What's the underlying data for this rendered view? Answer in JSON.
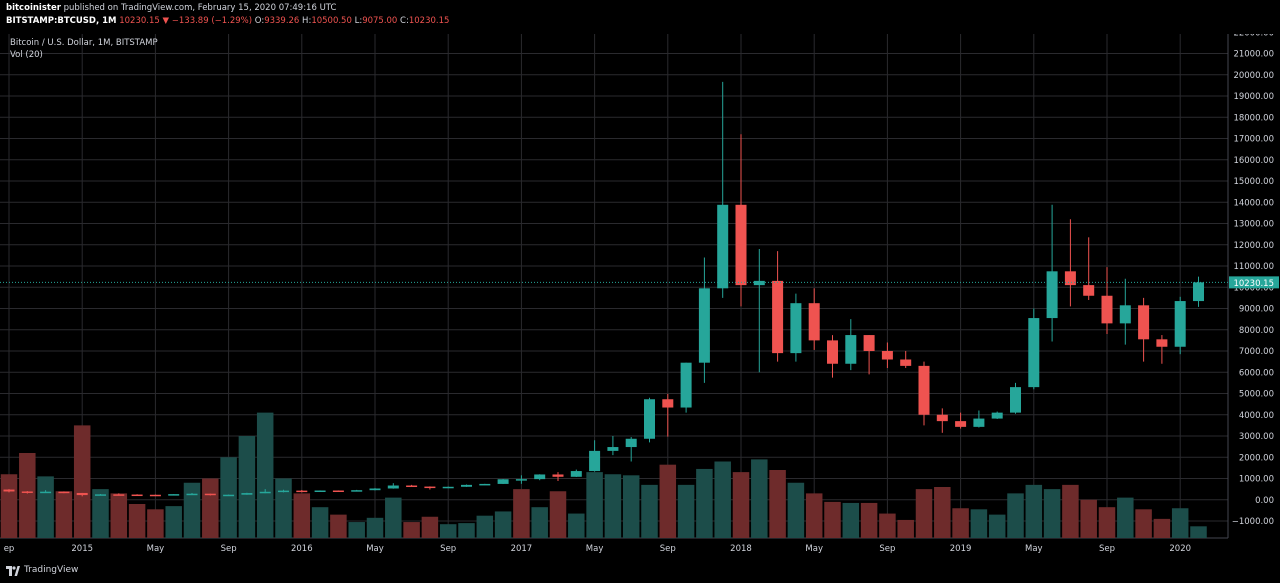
{
  "header": {
    "publisher": "bitcoinister",
    "published_text": "published on TradingView.com, February 15, 2020 07:49:16 UTC",
    "symbol": "BITSTAMP:BTCUSD, 1M",
    "last": "10230.15",
    "arrow": "▼",
    "change": "−133.89 (−1.29%)",
    "o_label": "O:",
    "o_value": "9339.26",
    "h_label": "H:",
    "h_value": "10500.50",
    "l_label": "L:",
    "l_value": "9075.00",
    "c_label": "C:",
    "c_value": "10230.15"
  },
  "legend": {
    "title": "Bitcoin / U.S. Dollar, 1M, BITSTAMP",
    "volume": "Vol (20)"
  },
  "footer": {
    "brand": "TradingView"
  },
  "colors": {
    "up": "#26a69a",
    "down": "#ef5350",
    "vol_up": "#1c4d4a",
    "vol_down": "#6e2b2b",
    "grid": "#2a2a2e",
    "text": "#d1d4dc",
    "price_badge": "#26a69a"
  },
  "chart_data": {
    "type": "candlestick",
    "interval": "1M",
    "ylim": [
      -1800,
      22200
    ],
    "y_ticks": [
      -1000,
      0,
      1000,
      2000,
      3000,
      4000,
      5000,
      6000,
      7000,
      8000,
      9000,
      10000,
      11000,
      12000,
      13000,
      14000,
      15000,
      16000,
      17000,
      18000,
      19000,
      20000,
      21000,
      22000
    ],
    "y_tick_labels": [
      "−1000.00",
      "0.00",
      "1000.00",
      "2000.00",
      "3000.00",
      "4000.00",
      "5000.00",
      "6000.00",
      "7000.00",
      "8000.00",
      "9000.00",
      "10000.00",
      "11000.00",
      "12000.00",
      "13000.00",
      "14000.00",
      "15000.00",
      "16000.00",
      "17000.00",
      "18000.00",
      "19000.00",
      "20000.00",
      "21000.00",
      "22000.00"
    ],
    "x_labels": [
      {
        "month": "2014-09",
        "label": "ep"
      },
      {
        "month": "2015-01",
        "label": "2015"
      },
      {
        "month": "2015-05",
        "label": "May"
      },
      {
        "month": "2015-09",
        "label": "Sep"
      },
      {
        "month": "2016-01",
        "label": "2016"
      },
      {
        "month": "2016-05",
        "label": "May"
      },
      {
        "month": "2016-09",
        "label": "Sep"
      },
      {
        "month": "2017-01",
        "label": "2017"
      },
      {
        "month": "2017-05",
        "label": "May"
      },
      {
        "month": "2017-09",
        "label": "Sep"
      },
      {
        "month": "2018-01",
        "label": "2018"
      },
      {
        "month": "2018-05",
        "label": "May"
      },
      {
        "month": "2018-09",
        "label": "Sep"
      },
      {
        "month": "2019-01",
        "label": "2019"
      },
      {
        "month": "2019-05",
        "label": "May"
      },
      {
        "month": "2019-09",
        "label": "Sep"
      },
      {
        "month": "2020-01",
        "label": "2020"
      }
    ],
    "last_price": 10230.15,
    "last_price_label": "10230.15",
    "candles": [
      {
        "t": "2014-09",
        "o": 480,
        "h": 500,
        "l": 350,
        "c": 390
      },
      {
        "t": "2014-10",
        "o": 390,
        "h": 410,
        "l": 290,
        "c": 340
      },
      {
        "t": "2014-11",
        "o": 340,
        "h": 450,
        "l": 320,
        "c": 380
      },
      {
        "t": "2014-12",
        "o": 380,
        "h": 390,
        "l": 310,
        "c": 320
      },
      {
        "t": "2015-01",
        "o": 320,
        "h": 320,
        "l": 160,
        "c": 220
      },
      {
        "t": "2015-02",
        "o": 220,
        "h": 270,
        "l": 210,
        "c": 255
      },
      {
        "t": "2015-03",
        "o": 255,
        "h": 300,
        "l": 240,
        "c": 245
      },
      {
        "t": "2015-04",
        "o": 245,
        "h": 260,
        "l": 210,
        "c": 235
      },
      {
        "t": "2015-05",
        "o": 235,
        "h": 245,
        "l": 225,
        "c": 230
      },
      {
        "t": "2015-06",
        "o": 230,
        "h": 265,
        "l": 220,
        "c": 265
      },
      {
        "t": "2015-07",
        "o": 265,
        "h": 320,
        "l": 255,
        "c": 285
      },
      {
        "t": "2015-08",
        "o": 285,
        "h": 285,
        "l": 200,
        "c": 230
      },
      {
        "t": "2015-09",
        "o": 230,
        "h": 245,
        "l": 225,
        "c": 237
      },
      {
        "t": "2015-10",
        "o": 237,
        "h": 330,
        "l": 235,
        "c": 315
      },
      {
        "t": "2015-11",
        "o": 315,
        "h": 500,
        "l": 310,
        "c": 375
      },
      {
        "t": "2015-12",
        "o": 375,
        "h": 470,
        "l": 350,
        "c": 430
      },
      {
        "t": "2016-01",
        "o": 430,
        "h": 460,
        "l": 350,
        "c": 370
      },
      {
        "t": "2016-02",
        "o": 370,
        "h": 440,
        "l": 365,
        "c": 435
      },
      {
        "t": "2016-03",
        "o": 435,
        "h": 440,
        "l": 390,
        "c": 415
      },
      {
        "t": "2016-04",
        "o": 415,
        "h": 465,
        "l": 410,
        "c": 450
      },
      {
        "t": "2016-05",
        "o": 450,
        "h": 550,
        "l": 440,
        "c": 530
      },
      {
        "t": "2016-06",
        "o": 530,
        "h": 780,
        "l": 520,
        "c": 670
      },
      {
        "t": "2016-07",
        "o": 670,
        "h": 700,
        "l": 600,
        "c": 620
      },
      {
        "t": "2016-08",
        "o": 620,
        "h": 630,
        "l": 480,
        "c": 575
      },
      {
        "t": "2016-09",
        "o": 575,
        "h": 620,
        "l": 570,
        "c": 610
      },
      {
        "t": "2016-10",
        "o": 610,
        "h": 720,
        "l": 605,
        "c": 700
      },
      {
        "t": "2016-11",
        "o": 700,
        "h": 750,
        "l": 690,
        "c": 745
      },
      {
        "t": "2016-12",
        "o": 745,
        "h": 975,
        "l": 740,
        "c": 965
      },
      {
        "t": "2017-01",
        "o": 965,
        "h": 1150,
        "l": 750,
        "c": 970
      },
      {
        "t": "2017-02",
        "o": 970,
        "h": 1200,
        "l": 920,
        "c": 1190
      },
      {
        "t": "2017-03",
        "o": 1190,
        "h": 1300,
        "l": 880,
        "c": 1080
      },
      {
        "t": "2017-04",
        "o": 1080,
        "h": 1420,
        "l": 1070,
        "c": 1350
      },
      {
        "t": "2017-05",
        "o": 1350,
        "h": 2800,
        "l": 1330,
        "c": 2300
      },
      {
        "t": "2017-06",
        "o": 2300,
        "h": 3000,
        "l": 2100,
        "c": 2480
      },
      {
        "t": "2017-07",
        "o": 2480,
        "h": 2950,
        "l": 1800,
        "c": 2870
      },
      {
        "t": "2017-08",
        "o": 2870,
        "h": 4800,
        "l": 2700,
        "c": 4730
      },
      {
        "t": "2017-09",
        "o": 4730,
        "h": 4980,
        "l": 2970,
        "c": 4340
      },
      {
        "t": "2017-10",
        "o": 4340,
        "h": 6450,
        "l": 4100,
        "c": 6450
      },
      {
        "t": "2017-11",
        "o": 6450,
        "h": 11400,
        "l": 5500,
        "c": 9950
      },
      {
        "t": "2017-12",
        "o": 9950,
        "h": 19666,
        "l": 9500,
        "c": 13880
      },
      {
        "t": "2018-01",
        "o": 13880,
        "h": 17200,
        "l": 9100,
        "c": 10100
      },
      {
        "t": "2018-02",
        "o": 10100,
        "h": 11800,
        "l": 6000,
        "c": 10300
      },
      {
        "t": "2018-03",
        "o": 10300,
        "h": 11700,
        "l": 6500,
        "c": 6900
      },
      {
        "t": "2018-04",
        "o": 6900,
        "h": 9700,
        "l": 6500,
        "c": 9250
      },
      {
        "t": "2018-05",
        "o": 9250,
        "h": 9950,
        "l": 7050,
        "c": 7500
      },
      {
        "t": "2018-06",
        "o": 7500,
        "h": 7750,
        "l": 5750,
        "c": 6400
      },
      {
        "t": "2018-07",
        "o": 6400,
        "h": 8500,
        "l": 6100,
        "c": 7750
      },
      {
        "t": "2018-08",
        "o": 7750,
        "h": 7750,
        "l": 5900,
        "c": 7000
      },
      {
        "t": "2018-09",
        "o": 7000,
        "h": 7400,
        "l": 6200,
        "c": 6600
      },
      {
        "t": "2018-10",
        "o": 6600,
        "h": 7000,
        "l": 6200,
        "c": 6300
      },
      {
        "t": "2018-11",
        "o": 6300,
        "h": 6500,
        "l": 3500,
        "c": 4000
      },
      {
        "t": "2018-12",
        "o": 4000,
        "h": 4300,
        "l": 3150,
        "c": 3700
      },
      {
        "t": "2019-01",
        "o": 3700,
        "h": 4100,
        "l": 3350,
        "c": 3430
      },
      {
        "t": "2019-02",
        "o": 3430,
        "h": 4200,
        "l": 3400,
        "c": 3820
      },
      {
        "t": "2019-03",
        "o": 3820,
        "h": 4150,
        "l": 3800,
        "c": 4100
      },
      {
        "t": "2019-04",
        "o": 4100,
        "h": 5500,
        "l": 4050,
        "c": 5300
      },
      {
        "t": "2019-05",
        "o": 5300,
        "h": 9000,
        "l": 5200,
        "c": 8550
      },
      {
        "t": "2019-06",
        "o": 8550,
        "h": 13880,
        "l": 7450,
        "c": 10750
      },
      {
        "t": "2019-07",
        "o": 10750,
        "h": 13200,
        "l": 9100,
        "c": 10100
      },
      {
        "t": "2019-08",
        "o": 10100,
        "h": 12350,
        "l": 9400,
        "c": 9600
      },
      {
        "t": "2019-09",
        "o": 9600,
        "h": 10950,
        "l": 7800,
        "c": 8300
      },
      {
        "t": "2019-10",
        "o": 8300,
        "h": 10400,
        "l": 7300,
        "c": 9150
      },
      {
        "t": "2019-11",
        "o": 9150,
        "h": 9500,
        "l": 6500,
        "c": 7550
      },
      {
        "t": "2019-12",
        "o": 7550,
        "h": 7750,
        "l": 6400,
        "c": 7200
      },
      {
        "t": "2020-01",
        "o": 7200,
        "h": 9550,
        "l": 6850,
        "c": 9350
      },
      {
        "t": "2020-02",
        "o": 9350,
        "h": 10500,
        "l": 9075,
        "c": 10230
      }
    ],
    "volume_overlay": [
      {
        "t": "2014-09",
        "v": 1200,
        "dir": "down"
      },
      {
        "t": "2014-10",
        "v": 2200,
        "dir": "down"
      },
      {
        "t": "2014-11",
        "v": 1100,
        "dir": "up"
      },
      {
        "t": "2014-12",
        "v": 400,
        "dir": "down"
      },
      {
        "t": "2015-01",
        "v": 3500,
        "dir": "down"
      },
      {
        "t": "2015-02",
        "v": 500,
        "dir": "up"
      },
      {
        "t": "2015-03",
        "v": 300,
        "dir": "down"
      },
      {
        "t": "2015-04",
        "v": -200,
        "dir": "down"
      },
      {
        "t": "2015-05",
        "v": -450,
        "dir": "down"
      },
      {
        "t": "2015-06",
        "v": -300,
        "dir": "up"
      },
      {
        "t": "2015-07",
        "v": 800,
        "dir": "up"
      },
      {
        "t": "2015-08",
        "v": 1000,
        "dir": "down"
      },
      {
        "t": "2015-09",
        "v": 2000,
        "dir": "up"
      },
      {
        "t": "2015-10",
        "v": 3000,
        "dir": "up"
      },
      {
        "t": "2015-11",
        "v": 4100,
        "dir": "up"
      },
      {
        "t": "2015-12",
        "v": 1000,
        "dir": "up"
      },
      {
        "t": "2016-01",
        "v": 300,
        "dir": "down"
      },
      {
        "t": "2016-02",
        "v": -350,
        "dir": "up"
      },
      {
        "t": "2016-03",
        "v": -700,
        "dir": "down"
      },
      {
        "t": "2016-04",
        "v": -1050,
        "dir": "up"
      },
      {
        "t": "2016-05",
        "v": -850,
        "dir": "up"
      },
      {
        "t": "2016-06",
        "v": 100,
        "dir": "up"
      },
      {
        "t": "2016-07",
        "v": -1050,
        "dir": "down"
      },
      {
        "t": "2016-08",
        "v": -800,
        "dir": "down"
      },
      {
        "t": "2016-09",
        "v": -1150,
        "dir": "up"
      },
      {
        "t": "2016-10",
        "v": -1100,
        "dir": "up"
      },
      {
        "t": "2016-11",
        "v": -750,
        "dir": "up"
      },
      {
        "t": "2016-12",
        "v": -550,
        "dir": "up"
      },
      {
        "t": "2017-01",
        "v": 500,
        "dir": "down"
      },
      {
        "t": "2017-02",
        "v": -350,
        "dir": "up"
      },
      {
        "t": "2017-03",
        "v": 400,
        "dir": "down"
      },
      {
        "t": "2017-04",
        "v": -650,
        "dir": "up"
      },
      {
        "t": "2017-05",
        "v": 1300,
        "dir": "up"
      },
      {
        "t": "2017-06",
        "v": 1200,
        "dir": "up"
      },
      {
        "t": "2017-07",
        "v": 1150,
        "dir": "up"
      },
      {
        "t": "2017-08",
        "v": 700,
        "dir": "up"
      },
      {
        "t": "2017-09",
        "v": 1650,
        "dir": "down"
      },
      {
        "t": "2017-10",
        "v": 700,
        "dir": "up"
      },
      {
        "t": "2017-11",
        "v": 1450,
        "dir": "up"
      },
      {
        "t": "2017-12",
        "v": 1800,
        "dir": "up"
      },
      {
        "t": "2018-01",
        "v": 1300,
        "dir": "down"
      },
      {
        "t": "2018-02",
        "v": 1900,
        "dir": "up"
      },
      {
        "t": "2018-03",
        "v": 1400,
        "dir": "down"
      },
      {
        "t": "2018-04",
        "v": 800,
        "dir": "up"
      },
      {
        "t": "2018-05",
        "v": 300,
        "dir": "down"
      },
      {
        "t": "2018-06",
        "v": -100,
        "dir": "down"
      },
      {
        "t": "2018-07",
        "v": -150,
        "dir": "up"
      },
      {
        "t": "2018-08",
        "v": -150,
        "dir": "down"
      },
      {
        "t": "2018-09",
        "v": -650,
        "dir": "down"
      },
      {
        "t": "2018-10",
        "v": -950,
        "dir": "down"
      },
      {
        "t": "2018-11",
        "v": 500,
        "dir": "down"
      },
      {
        "t": "2018-12",
        "v": 600,
        "dir": "down"
      },
      {
        "t": "2019-01",
        "v": -400,
        "dir": "down"
      },
      {
        "t": "2019-02",
        "v": -450,
        "dir": "up"
      },
      {
        "t": "2019-03",
        "v": -700,
        "dir": "up"
      },
      {
        "t": "2019-04",
        "v": 300,
        "dir": "up"
      },
      {
        "t": "2019-05",
        "v": 700,
        "dir": "up"
      },
      {
        "t": "2019-06",
        "v": 500,
        "dir": "up"
      },
      {
        "t": "2019-07",
        "v": 700,
        "dir": "down"
      },
      {
        "t": "2019-08",
        "v": 0,
        "dir": "down"
      },
      {
        "t": "2019-09",
        "v": -350,
        "dir": "down"
      },
      {
        "t": "2019-10",
        "v": 100,
        "dir": "up"
      },
      {
        "t": "2019-11",
        "v": -450,
        "dir": "down"
      },
      {
        "t": "2019-12",
        "v": -900,
        "dir": "down"
      },
      {
        "t": "2020-01",
        "v": -400,
        "dir": "up"
      },
      {
        "t": "2020-02",
        "v": -1250,
        "dir": "up"
      }
    ]
  }
}
